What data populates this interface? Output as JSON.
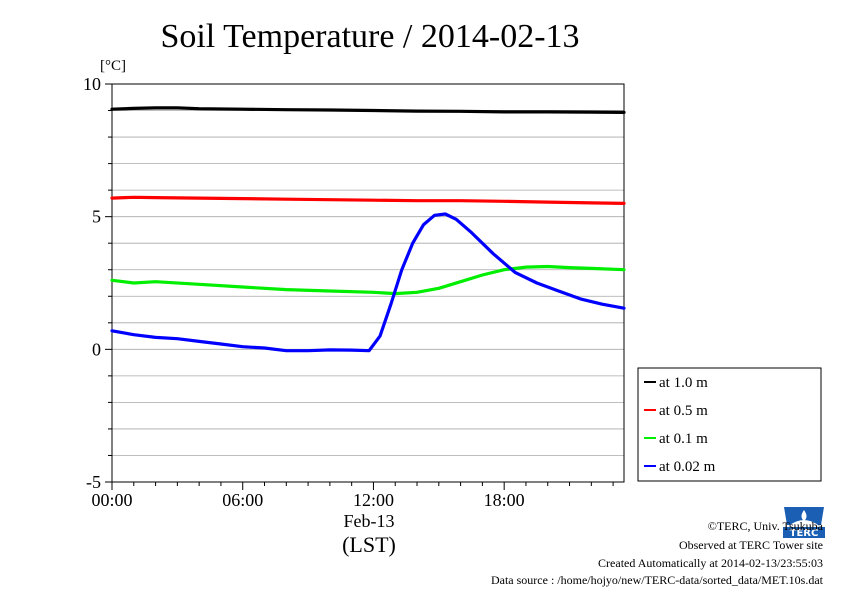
{
  "chart_data": {
    "type": "line",
    "title": "Soil Temperature / 2014-02-13",
    "yunit": "[°C]",
    "ylim": [
      -5,
      10
    ],
    "yticks": [
      "10",
      "5",
      "0",
      "-5"
    ],
    "xlim": [
      0,
      23.5
    ],
    "xticks": [
      "00:00",
      "06:00",
      "12:00",
      "18:00"
    ],
    "xdate": "Feb-13",
    "xlabel": "(LST)",
    "grid": true,
    "legend_position": "right",
    "series": [
      {
        "name": "at 1.0 m",
        "color": "#000000",
        "x": [
          0,
          1,
          2,
          3,
          4,
          6,
          8,
          10,
          12,
          14,
          16,
          18,
          20,
          22,
          23.5
        ],
        "y": [
          9.05,
          9.08,
          9.1,
          9.1,
          9.07,
          9.05,
          9.03,
          9.02,
          9.0,
          8.98,
          8.97,
          8.95,
          8.95,
          8.94,
          8.93
        ]
      },
      {
        "name": "at 0.5 m",
        "color": "#ff0000",
        "x": [
          0,
          1,
          2,
          4,
          6,
          8,
          10,
          12,
          14,
          16,
          18,
          20,
          22,
          23.5
        ],
        "y": [
          5.7,
          5.73,
          5.72,
          5.7,
          5.68,
          5.66,
          5.64,
          5.62,
          5.6,
          5.6,
          5.58,
          5.55,
          5.52,
          5.5
        ]
      },
      {
        "name": "at 0.1 m",
        "color": "#00ee00",
        "x": [
          0,
          1,
          2,
          4,
          6,
          8,
          10,
          12,
          13,
          14,
          15,
          16,
          17,
          18,
          19,
          20,
          21,
          22,
          23.5
        ],
        "y": [
          2.6,
          2.5,
          2.55,
          2.45,
          2.35,
          2.25,
          2.2,
          2.15,
          2.1,
          2.15,
          2.3,
          2.55,
          2.8,
          3.0,
          3.1,
          3.12,
          3.08,
          3.05,
          3.0
        ]
      },
      {
        "name": "at 0.02 m",
        "color": "#0000ff",
        "x": [
          0,
          1,
          2,
          3,
          4,
          5,
          6,
          7,
          8,
          9,
          10,
          11,
          11.8,
          12.3,
          12.8,
          13.3,
          13.8,
          14.3,
          14.8,
          15.3,
          15.8,
          16.5,
          17.5,
          18.5,
          19.5,
          20.5,
          21.5,
          22.5,
          23.5
        ],
        "y": [
          0.7,
          0.55,
          0.45,
          0.4,
          0.3,
          0.2,
          0.1,
          0.05,
          -0.05,
          -0.05,
          -0.02,
          -0.03,
          -0.05,
          0.5,
          1.7,
          3.0,
          4.0,
          4.7,
          5.05,
          5.1,
          4.9,
          4.4,
          3.6,
          2.9,
          2.5,
          2.2,
          1.9,
          1.7,
          1.55
        ]
      }
    ]
  },
  "credits": {
    "copyright": "©TERC, Univ. Tsukuba",
    "site": "Observed at TERC Tower site",
    "created": "Created Automatically at 2014-02-13/23:55:03",
    "source": "Data source : /home/hojyo/new/TERC-data/sorted_data/MET.10s.dat",
    "logo_text": "TERC"
  }
}
